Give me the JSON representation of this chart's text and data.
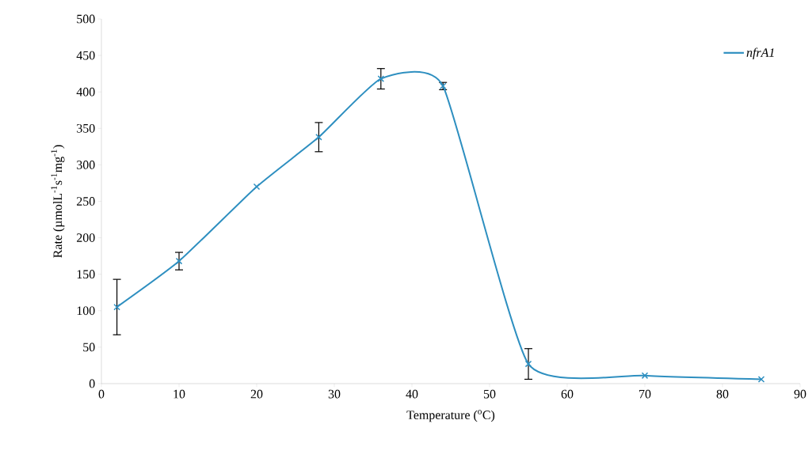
{
  "chart_data": {
    "type": "line",
    "xlabel": "Temperature ($^{o}$C)",
    "ylabel": "Rate (µmolL$^{-1}$s$^{-1}$mg$^{-1}$)",
    "x": [
      2,
      10,
      20,
      28,
      36,
      44,
      55,
      70,
      85
    ],
    "series": [
      {
        "name": "*nfrA1*",
        "color": "#2e8fc0",
        "values": [
          105,
          168,
          270,
          338,
          418,
          408,
          27,
          11,
          6
        ],
        "errors": [
          38,
          12,
          null,
          20,
          14,
          5,
          21,
          null,
          null
        ]
      }
    ],
    "xlim": [
      0,
      90
    ],
    "xticks": [
      0,
      10,
      20,
      30,
      40,
      50,
      60,
      70,
      80,
      90
    ],
    "ylim": [
      0,
      500
    ],
    "yticks": [
      0,
      50,
      100,
      150,
      200,
      250,
      300,
      350,
      400,
      450,
      500
    ],
    "legend": "top right",
    "marker": "cross",
    "line_style": "solid",
    "grid": false
  }
}
